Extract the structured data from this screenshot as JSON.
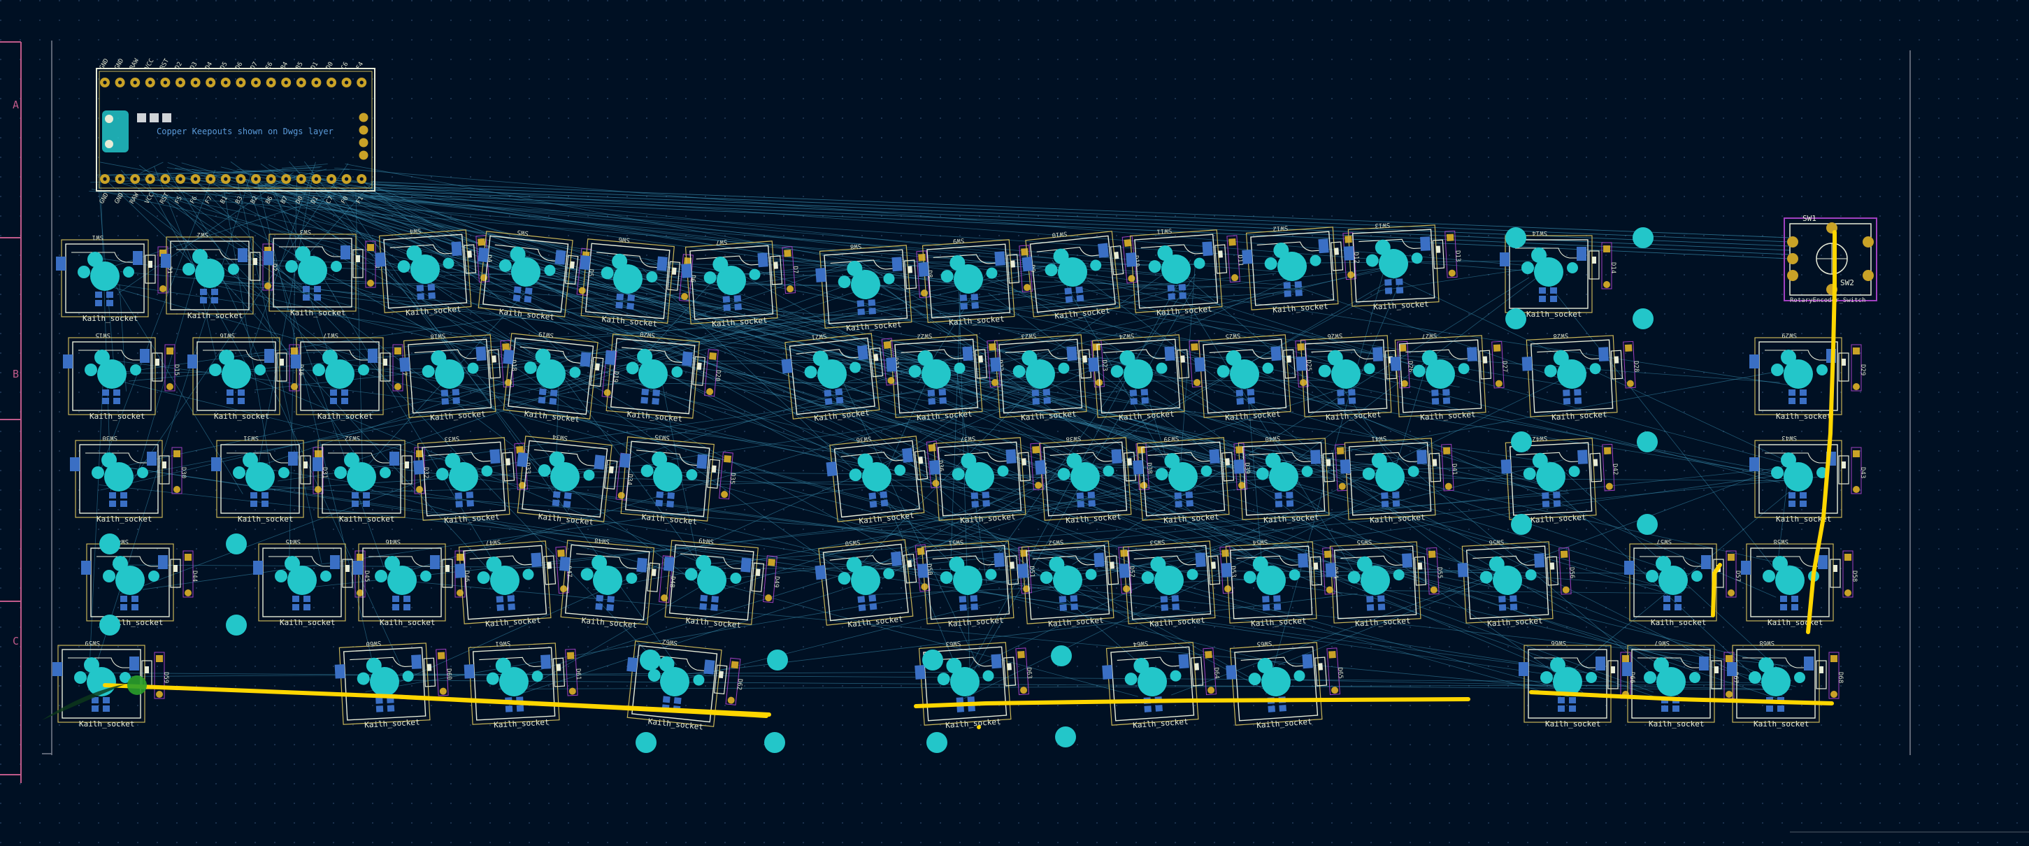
{
  "board": {
    "frame_row_labels": [
      "A",
      "B",
      "C"
    ],
    "mcu_note": "Copper Keepouts shown on Dwgs layer",
    "mcu_pin_labels_top": [
      "GND",
      "GND",
      "RAW",
      "VCC",
      "RST",
      "D2",
      "D3",
      "D4",
      "D5",
      "D6",
      "D7",
      "E6",
      "B4",
      "B5",
      "D1",
      "D0",
      "C6",
      "F4"
    ],
    "mcu_pin_labels_bottom": [
      "GND",
      "GND",
      "RAW",
      "VCC",
      "RST",
      "F5",
      "F6",
      "F7",
      "B1",
      "B3",
      "B2",
      "B6",
      "B7",
      "D0",
      "D1",
      "C7",
      "F0",
      "F1"
    ]
  },
  "footprint": {
    "name": "Kailh_socket",
    "diode_ref": "D",
    "switch_ref": "SW"
  },
  "encoder": {
    "ref": "SW1",
    "name": "RotaryEncoder_Switch",
    "pin_label": "SW2"
  },
  "colors": {
    "background": "#001023",
    "grid_dot": "#1c3350",
    "pad_cyan": "#23c6c9",
    "pad_gold": "#c9a227",
    "smd_blue": "#3a6fc4",
    "courtyard": "#c9b558",
    "track_yellow": "#ffd600",
    "ratsnest": "#3a8fb0",
    "frame": "#c05a8a"
  },
  "icons": {
    "through_hole_pad": "through-hole-pad-icon",
    "smd_pad": "smd-pad-icon"
  }
}
